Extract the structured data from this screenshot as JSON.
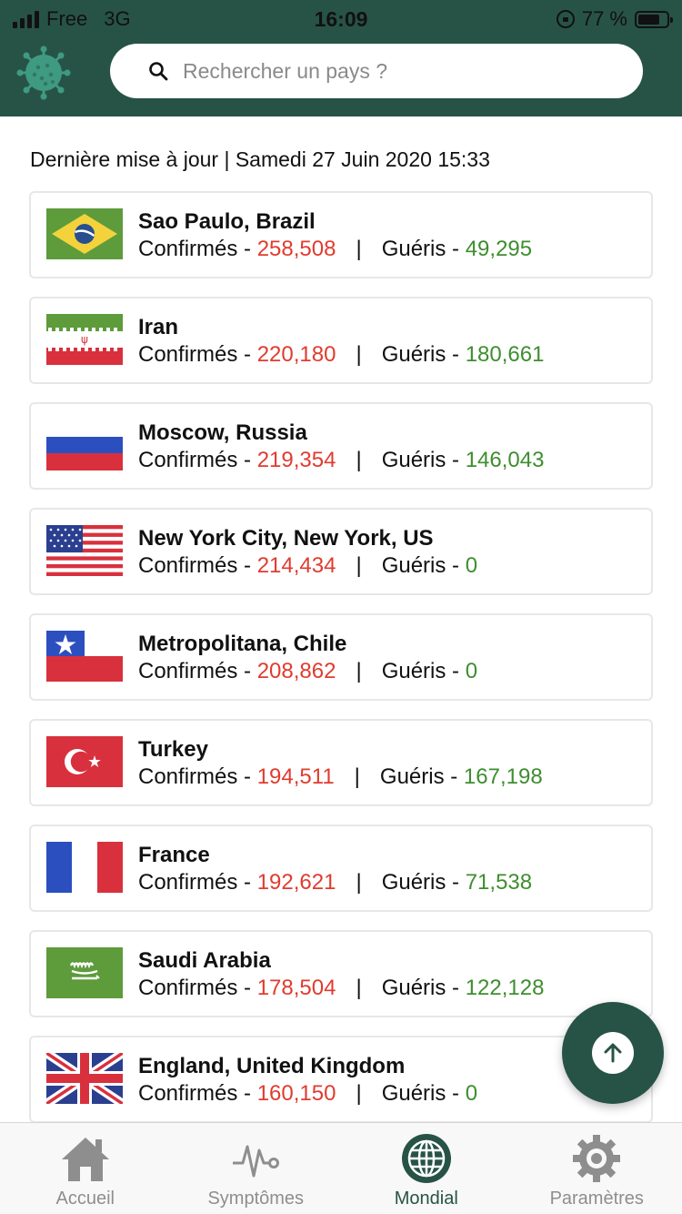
{
  "status_bar": {
    "carrier": "Free",
    "network": "3G",
    "time": "16:09",
    "battery": "77 %"
  },
  "search": {
    "placeholder": "Rechercher un pays ?"
  },
  "last_update": "Dernière mise à jour | Samedi 27 Juin 2020 15:33",
  "labels": {
    "confirmed": "Confirmés - ",
    "recovered": "Guéris - ",
    "separator": "|"
  },
  "countries": [
    {
      "name": "Sao Paulo, Brazil",
      "confirmed": "258,508",
      "recovered": "49,295",
      "flag": "brazil"
    },
    {
      "name": "Iran",
      "confirmed": "220,180",
      "recovered": "180,661",
      "flag": "iran"
    },
    {
      "name": "Moscow, Russia",
      "confirmed": "219,354",
      "recovered": "146,043",
      "flag": "russia"
    },
    {
      "name": "New York City, New York, US",
      "confirmed": "214,434",
      "recovered": "0",
      "flag": "usa"
    },
    {
      "name": "Metropolitana, Chile",
      "confirmed": "208,862",
      "recovered": "0",
      "flag": "chile"
    },
    {
      "name": "Turkey",
      "confirmed": "194,511",
      "recovered": "167,198",
      "flag": "turkey"
    },
    {
      "name": "France",
      "confirmed": "192,621",
      "recovered": "71,538",
      "flag": "france"
    },
    {
      "name": "Saudi Arabia",
      "confirmed": "178,504",
      "recovered": "122,128",
      "flag": "saudi-arabia"
    },
    {
      "name": "England, United Kingdom",
      "confirmed": "160,150",
      "recovered": "0",
      "flag": "united-kingdom"
    }
  ],
  "tabs": [
    {
      "label": "Accueil",
      "icon": "home-icon"
    },
    {
      "label": "Symptômes",
      "icon": "pulse-icon"
    },
    {
      "label": "Mondial",
      "icon": "globe-icon",
      "active": true
    },
    {
      "label": "Paramètres",
      "icon": "gear-icon"
    }
  ],
  "colors": {
    "header": "#275346",
    "confirmed": "#e13b2f",
    "recovered": "#3e8e2f",
    "tab_inactive": "#8e8e8e"
  }
}
